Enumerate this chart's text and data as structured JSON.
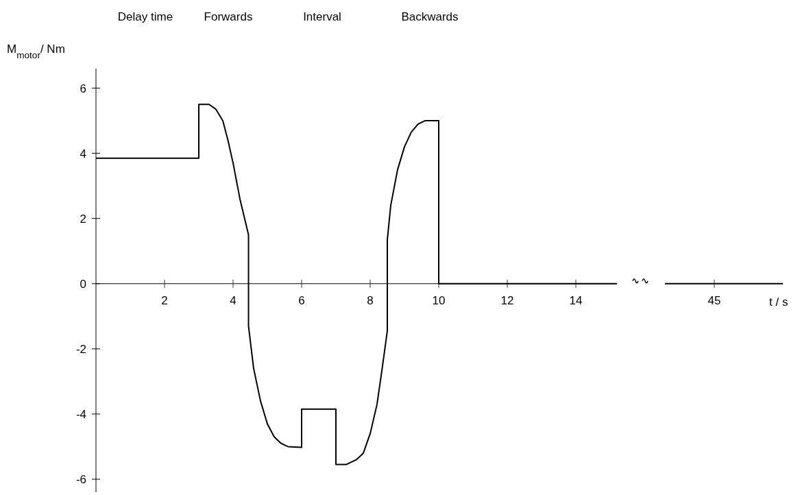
{
  "chart_data": [
    {
      "type": "line",
      "ylabel": "M$_{motor}$/ Nm",
      "annotations": [
        "Delay time",
        "Forwards",
        "Interval",
        "Backwards"
      ],
      "series": [
        {
          "color": "#000000",
          "x": [
            0,
            3,
            3,
            3.3,
            3.5,
            3.7,
            3.85,
            4.0,
            4.2,
            4.45,
            4.45,
            4.6,
            4.8,
            5.0,
            5.2,
            5.4,
            5.6,
            6.0,
            6.0,
            7.0,
            7.0,
            7.3,
            7.6,
            7.8,
            8.0,
            8.2,
            8.35,
            8.5,
            8.5,
            8.6,
            8.8,
            9.0,
            9.2,
            9.4,
            9.6,
            10,
            10,
            15.2
          ],
          "values": [
            3.85,
            3.85,
            5.5,
            5.5,
            5.35,
            5.0,
            4.4,
            3.7,
            2.6,
            1.5,
            -1.3,
            -2.6,
            -3.6,
            -4.3,
            -4.7,
            -4.9,
            -5.0,
            -5.02,
            -3.85,
            -3.85,
            -5.55,
            -5.55,
            -5.4,
            -5.2,
            -4.6,
            -3.7,
            -2.6,
            -1.45,
            1.35,
            2.4,
            3.5,
            4.2,
            4.65,
            4.9,
            5.0,
            5.0,
            0,
            0
          ]
        }
      ],
      "xlim": [
        0,
        15.2
      ],
      "xticks": [
        2,
        4,
        6,
        8,
        10,
        12,
        14
      ],
      "ylim": [
        -6.4,
        6.6
      ],
      "yticks": [
        -6,
        -4,
        -2,
        0,
        2,
        4,
        6
      ],
      "grid": false,
      "marker": "none",
      "line_style": "solid"
    },
    {
      "type": "other",
      "xlabel": "t / s",
      "annotations": [
        "45"
      ]
    }
  ]
}
